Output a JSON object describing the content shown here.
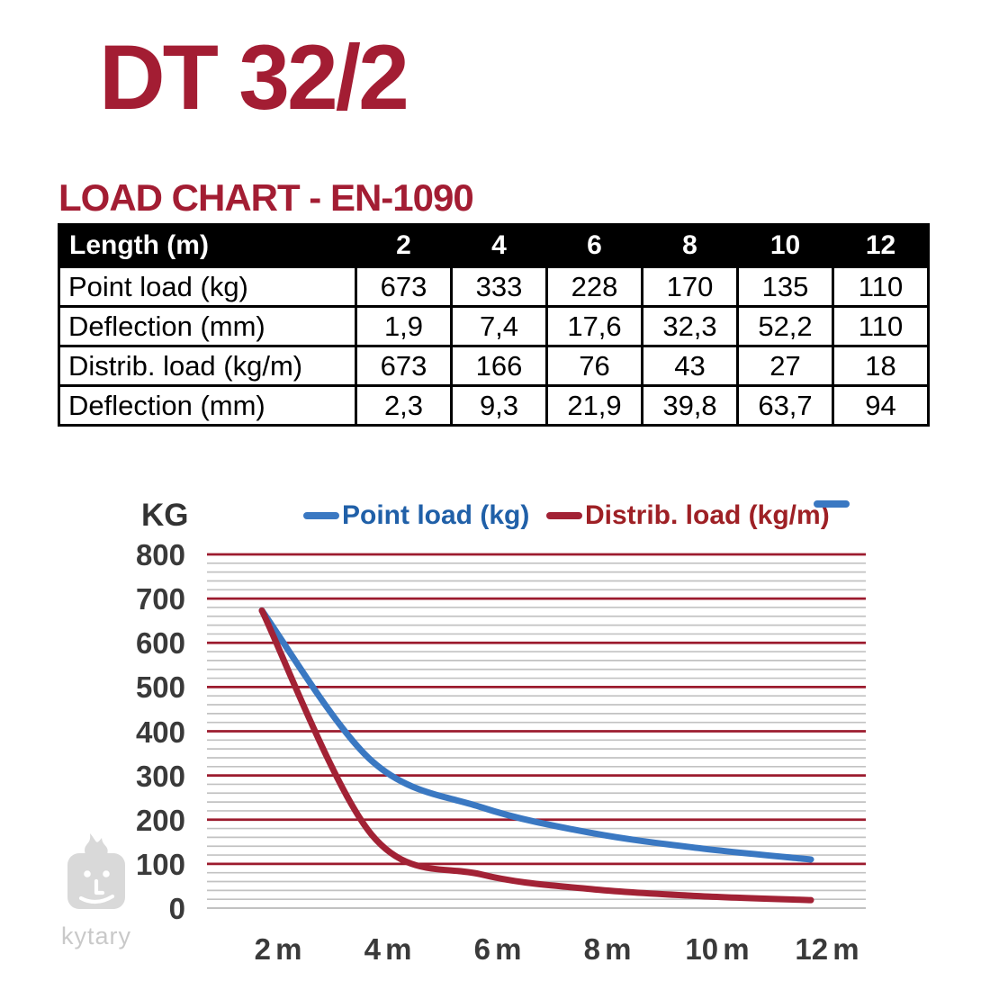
{
  "page": {
    "title": "DT 32/2",
    "heading": "LOAD CHART - EN-1090",
    "accent_color": "#A31D33"
  },
  "table": {
    "header_label": "Length (m)",
    "columns": [
      "2",
      "4",
      "6",
      "8",
      "10",
      "12"
    ],
    "rows": [
      {
        "label": "Point load (kg)",
        "values": [
          "673",
          "333",
          "228",
          "170",
          "135",
          "110"
        ]
      },
      {
        "label": "Deflection (mm)",
        "values": [
          "1,9",
          "7,4",
          "17,6",
          "32,3",
          "52,2",
          "110"
        ]
      },
      {
        "label": "Distrib. load (kg/m)",
        "values": [
          "673",
          "166",
          "76",
          "43",
          "27",
          "18"
        ]
      },
      {
        "label": "Deflection (mm)",
        "values": [
          "2,3",
          "9,3",
          "21,9",
          "39,8",
          "63,7",
          "94"
        ]
      }
    ]
  },
  "chart_data": {
    "type": "line",
    "unit_label": "KG",
    "categories": [
      "2 m",
      "4 m",
      "6 m",
      "8 m",
      "10 m",
      "12 m"
    ],
    "series": [
      {
        "name": "Point load (kg)",
        "values": [
          673,
          333,
          228,
          170,
          135,
          110
        ],
        "line_color": "#3A78C2",
        "label_color": "#2060A8"
      },
      {
        "name": "Distrib. load (kg/m)",
        "values": [
          673,
          166,
          76,
          43,
          27,
          18
        ],
        "line_color": "#A22235",
        "label_color": "#9E2025"
      }
    ],
    "extra_legend_marker_color": "#3A78C2",
    "ylim": [
      0,
      800
    ],
    "y_major_step": 100,
    "y_minor_step": 20,
    "y_ticks": [
      800,
      700,
      600,
      500,
      400,
      300,
      200,
      100,
      0
    ],
    "grid": {
      "major_color": "#9C1B2E",
      "minor_color": "#C2C2C2",
      "zero_color": "#B9B9B9",
      "grid_on": true
    },
    "legend_position": "top"
  },
  "watermark": {
    "text": "kytary"
  }
}
